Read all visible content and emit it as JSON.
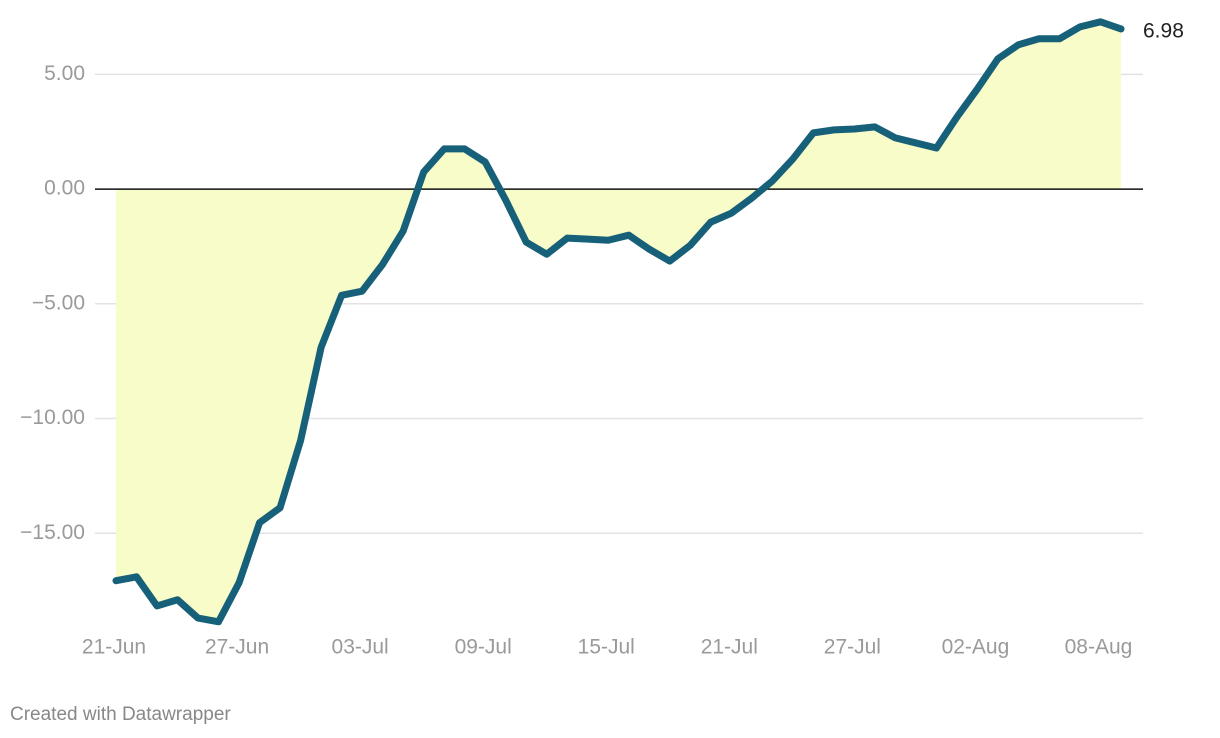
{
  "chart_data": {
    "type": "area",
    "categories": [
      "21-Jun",
      null,
      null,
      null,
      null,
      null,
      "27-Jun",
      null,
      null,
      null,
      null,
      null,
      "03-Jul",
      null,
      null,
      null,
      null,
      null,
      "09-Jul",
      null,
      null,
      null,
      null,
      null,
      "15-Jul",
      null,
      null,
      null,
      null,
      null,
      "21-Jul",
      null,
      null,
      null,
      null,
      null,
      "27-Jul",
      null,
      null,
      null,
      null,
      null,
      "02-Aug",
      null,
      null,
      null,
      null,
      null,
      "08-Aug",
      null
    ],
    "values": [
      -17.07,
      -16.9,
      -18.17,
      -17.9,
      -18.7,
      -18.86,
      -17.16,
      -14.54,
      -13.89,
      -10.96,
      -6.9,
      -4.63,
      -4.45,
      -3.28,
      -1.83,
      0.74,
      1.75,
      1.75,
      1.18,
      -0.48,
      -2.31,
      -2.84,
      -2.14,
      -2.18,
      -2.23,
      -2.01,
      -2.62,
      -3.14,
      -2.45,
      -1.44,
      -1.05,
      -0.39,
      0.35,
      1.31,
      2.45,
      2.58,
      2.62,
      2.71,
      2.23,
      2.01,
      1.79,
      3.14,
      4.37,
      5.68,
      6.29,
      6.55,
      6.55,
      7.07,
      7.29,
      6.98
    ],
    "color": "#17607a",
    "fill_color": "#f7fcc8",
    "ylim": [
      -19,
      7.5
    ],
    "yticks": [
      {
        "value": 5,
        "label": "5.00"
      },
      {
        "value": 0,
        "label": "0.00"
      },
      {
        "value": -5,
        "label": "−5.00"
      },
      {
        "value": -10,
        "label": "−10.00"
      },
      {
        "value": -15,
        "label": "−15.00"
      }
    ],
    "grid": true,
    "footer": "Created with Datawrapper"
  }
}
